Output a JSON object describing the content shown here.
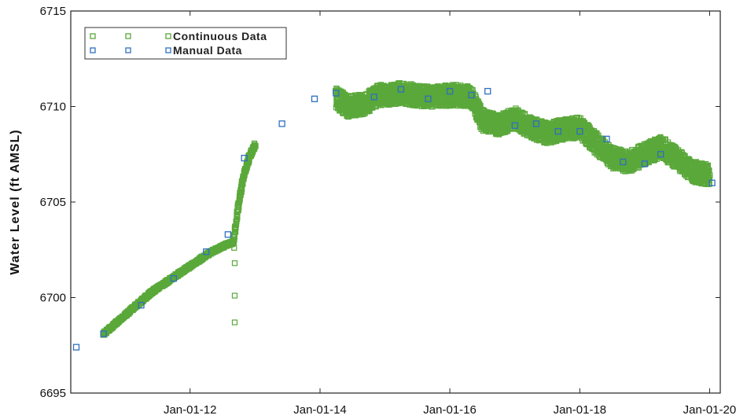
{
  "chart_data": {
    "type": "scatter",
    "title": "",
    "xlabel": "",
    "ylabel": "Water Level (ft AMSL)",
    "x_ticks": [
      "Jan-01-12",
      "Jan-01-14",
      "Jan-01-16",
      "Jan-01-18",
      "Jan-01-20"
    ],
    "y_ticks": [
      "6695",
      "6700",
      "6705",
      "6710",
      "6715"
    ],
    "xlim": [
      "2010-03-01",
      "2020-03-01"
    ],
    "ylim": [
      6695,
      6715
    ],
    "grid": false,
    "legend_position": "top-left",
    "colors": {
      "continuous": "#5aa83a",
      "manual": "#2f6fbf"
    },
    "series": [
      {
        "name": "Continuous Data",
        "marker": "open-square",
        "color": "#5aa83a",
        "segments": [
          {
            "points": [
              [
                "2010-09-01",
                6698.1
              ],
              [
                "2011-06-01",
                6700.3
              ],
              [
                "2012-05-01",
                6702.4
              ],
              [
                "2012-08-01",
                6702.8
              ],
              [
                "2012-09-01",
                6702.9
              ]
            ]
          },
          {
            "points": [
              [
                "2012-09-01",
                6702.9
              ],
              [
                "2012-10-01",
                6705.0
              ],
              [
                "2012-11-01",
                6706.5
              ],
              [
                "2012-12-01",
                6707.4
              ],
              [
                "2013-01-01",
                6708.0
              ]
            ]
          },
          {
            "points": [
              [
                "2014-04-01",
                6710.5
              ],
              [
                "2014-06-01",
                6710.0
              ],
              [
                "2014-09-01",
                6710.1
              ],
              [
                "2014-12-01",
                6710.6
              ],
              [
                "2015-04-01",
                6710.7
              ],
              [
                "2015-09-01",
                6710.5
              ],
              [
                "2016-02-01",
                6710.6
              ],
              [
                "2016-05-01",
                6710.5
              ],
              [
                "2016-07-01",
                6709.3
              ],
              [
                "2016-10-01",
                6709.0
              ],
              [
                "2017-01-01",
                6709.4
              ],
              [
                "2017-04-01",
                6708.9
              ],
              [
                "2017-07-01",
                6708.6
              ],
              [
                "2017-10-01",
                6708.8
              ],
              [
                "2018-01-01",
                6708.9
              ],
              [
                "2018-04-01",
                6708.1
              ],
              [
                "2018-07-01",
                6707.3
              ],
              [
                "2018-10-01",
                6707.1
              ],
              [
                "2019-01-01",
                6707.5
              ],
              [
                "2019-04-01",
                6707.9
              ],
              [
                "2019-07-01",
                6707.3
              ],
              [
                "2019-10-01",
                6706.6
              ],
              [
                "2020-01-01",
                6706.4
              ]
            ]
          }
        ],
        "outliers": [
          [
            "2012-09-05",
            6702.6
          ],
          [
            "2012-09-08",
            6701.8
          ],
          [
            "2012-09-08",
            6700.1
          ],
          [
            "2012-09-08",
            6698.7
          ]
        ]
      },
      {
        "name": "Manual Data",
        "marker": "open-square",
        "color": "#2f6fbf",
        "points": [
          [
            "2010-04-01",
            6697.4
          ],
          [
            "2010-09-01",
            6698.1
          ],
          [
            "2011-04-01",
            6699.6
          ],
          [
            "2011-10-01",
            6701.0
          ],
          [
            "2012-04-01",
            6702.4
          ],
          [
            "2012-08-01",
            6703.3
          ],
          [
            "2012-11-01",
            6707.3
          ],
          [
            "2013-06-01",
            6709.1
          ],
          [
            "2013-12-01",
            6710.4
          ],
          [
            "2014-04-01",
            6710.7
          ],
          [
            "2014-11-01",
            6710.5
          ],
          [
            "2015-04-01",
            6710.9
          ],
          [
            "2015-09-01",
            6710.4
          ],
          [
            "2016-01-01",
            6710.8
          ],
          [
            "2016-05-01",
            6710.6
          ],
          [
            "2016-08-01",
            6710.8
          ],
          [
            "2017-01-01",
            6709.0
          ],
          [
            "2017-05-01",
            6709.1
          ],
          [
            "2017-09-01",
            6708.7
          ],
          [
            "2018-01-01",
            6708.7
          ],
          [
            "2018-06-01",
            6708.3
          ],
          [
            "2018-09-01",
            6707.1
          ],
          [
            "2019-01-01",
            6707.0
          ],
          [
            "2019-04-01",
            6707.5
          ],
          [
            "2020-01-15",
            6706.0
          ]
        ]
      }
    ]
  }
}
